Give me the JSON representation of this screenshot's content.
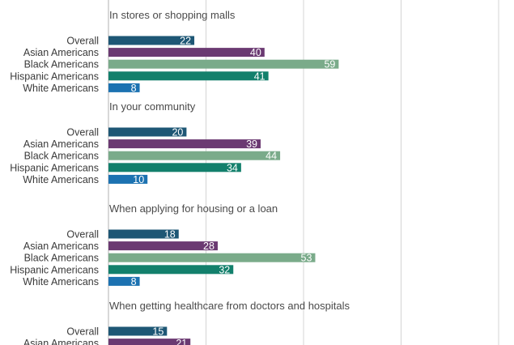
{
  "chart_data": {
    "type": "bar",
    "orientation": "horizontal",
    "xlim": [
      0,
      100
    ],
    "grid": true,
    "colors": {
      "Overall": "#1e5775",
      "Asian Americans": "#6b3a72",
      "Black Americans": "#7aab8a",
      "Hispanic Americans": "#13806c",
      "White Americans": "#1c72b1"
    },
    "groups": [
      {
        "title": "In stores or shopping malls",
        "categories": [
          "Overall",
          "Asian Americans",
          "Black Americans",
          "Hispanic Americans",
          "White Americans"
        ],
        "values": [
          22,
          40,
          59,
          41,
          8
        ]
      },
      {
        "title": "In your community",
        "categories": [
          "Overall",
          "Asian Americans",
          "Black Americans",
          "Hispanic Americans",
          "White Americans"
        ],
        "values": [
          20,
          39,
          44,
          34,
          10
        ]
      },
      {
        "title": "When applying for housing or a loan",
        "categories": [
          "Overall",
          "Asian Americans",
          "Black Americans",
          "Hispanic Americans",
          "White Americans"
        ],
        "values": [
          18,
          28,
          53,
          32,
          8
        ]
      },
      {
        "title": "When getting healthcare from doctors and hospitals",
        "categories": [
          "Overall",
          "Asian Americans"
        ],
        "values": [
          15,
          21
        ]
      }
    ]
  }
}
